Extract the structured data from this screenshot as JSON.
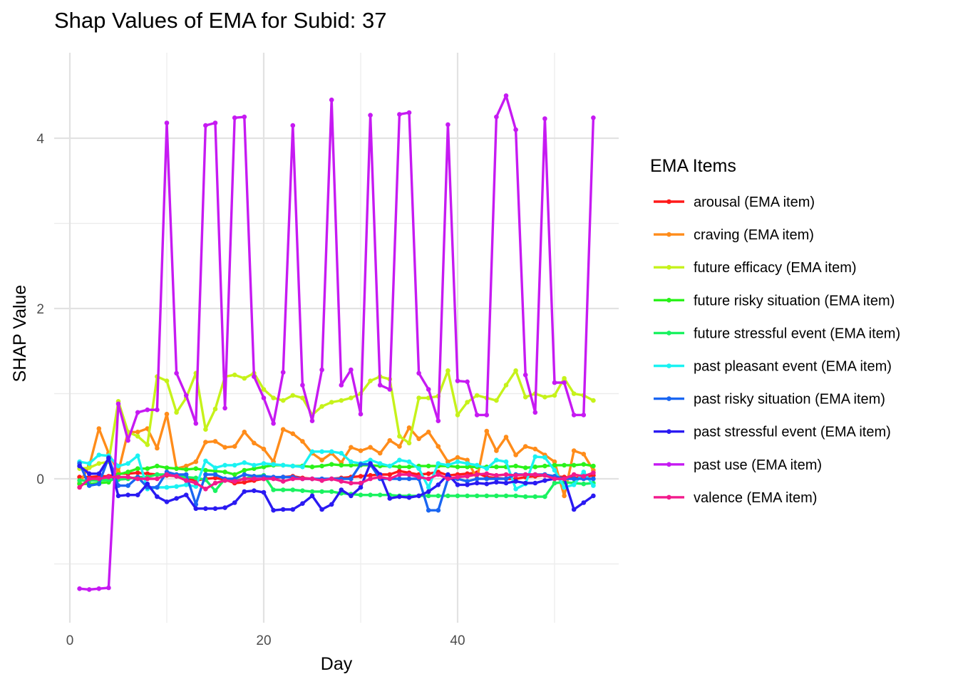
{
  "chart_data": {
    "type": "line",
    "title": "Shap Values of EMA for Subid: 37",
    "xlabel": "Day",
    "ylabel": "SHAP Value",
    "xlim": [
      -0.5,
      57
    ],
    "ylim": [
      -1.7,
      5.0
    ],
    "x_ticks": [
      0,
      20,
      40
    ],
    "y_ticks": [
      0,
      2,
      4
    ],
    "x_minor": [
      10,
      30,
      50
    ],
    "y_minor": [
      -1,
      1,
      3
    ],
    "grid": true,
    "legend_title": "EMA Items",
    "legend_position": "right",
    "x": [
      1,
      2,
      3,
      4,
      5,
      6,
      7,
      8,
      9,
      10,
      11,
      12,
      13,
      14,
      15,
      16,
      17,
      18,
      19,
      20,
      21,
      22,
      23,
      24,
      25,
      26,
      27,
      28,
      29,
      30,
      31,
      32,
      33,
      34,
      35,
      36,
      37,
      38,
      39,
      40,
      41,
      42,
      43,
      44,
      45,
      46,
      47,
      48,
      49,
      50,
      51,
      52,
      53,
      54
    ],
    "series": [
      {
        "name": "arousal (EMA item)",
        "color": "#ff1a1a",
        "values": [
          0.02,
          0.02,
          0.03,
          0.03,
          0.06,
          0.06,
          0.07,
          0.06,
          0.05,
          0.04,
          0.03,
          0.01,
          -0.02,
          0.0,
          0.01,
          -0.01,
          -0.05,
          -0.04,
          -0.02,
          0.0,
          0.01,
          0.02,
          0.03,
          0.01,
          0.0,
          -0.01,
          0.0,
          0.01,
          0.02,
          0.03,
          0.04,
          0.05,
          0.05,
          0.09,
          0.07,
          0.05,
          0.06,
          0.08,
          0.04,
          0.05,
          0.06,
          0.07,
          0.02,
          0.01,
          0.0,
          0.0,
          0.02,
          0.03,
          0.04,
          0.03,
          0.02,
          0.01,
          0.02,
          0.04
        ]
      },
      {
        "name": "craving (EMA item)",
        "color": "#ff8c1a",
        "values": [
          -0.05,
          0.15,
          0.59,
          0.3,
          0.08,
          0.55,
          0.55,
          0.59,
          0.36,
          0.76,
          0.12,
          0.15,
          0.2,
          0.43,
          0.44,
          0.37,
          0.38,
          0.55,
          0.42,
          0.35,
          0.2,
          0.58,
          0.53,
          0.44,
          0.3,
          0.22,
          0.3,
          0.19,
          0.37,
          0.33,
          0.37,
          0.3,
          0.45,
          0.38,
          0.6,
          0.47,
          0.55,
          0.38,
          0.2,
          0.25,
          0.22,
          0.0,
          0.56,
          0.33,
          0.49,
          0.28,
          0.38,
          0.35,
          0.28,
          0.2,
          -0.2,
          0.33,
          0.29,
          0.1
        ]
      },
      {
        "name": "future efficacy (EMA item)",
        "color": "#c6f21a",
        "values": [
          0.12,
          0.13,
          0.18,
          0.2,
          0.91,
          0.55,
          0.5,
          0.4,
          1.2,
          1.15,
          0.78,
          0.95,
          1.24,
          0.58,
          0.82,
          1.2,
          1.22,
          1.18,
          1.24,
          1.05,
          0.95,
          0.92,
          0.98,
          0.95,
          0.75,
          0.85,
          0.9,
          0.92,
          0.95,
          1.0,
          1.15,
          1.2,
          1.17,
          0.5,
          0.42,
          0.95,
          0.95,
          0.97,
          1.27,
          0.75,
          0.9,
          0.98,
          0.95,
          0.92,
          1.1,
          1.27,
          0.96,
          1.0,
          0.96,
          0.98,
          1.18,
          1.0,
          0.98,
          0.92
        ]
      },
      {
        "name": "future risky situation (EMA item)",
        "color": "#2af21a",
        "values": [
          -0.06,
          -0.06,
          -0.05,
          -0.04,
          0.05,
          0.08,
          0.12,
          0.12,
          0.15,
          0.13,
          0.12,
          0.11,
          0.12,
          0.1,
          0.09,
          0.08,
          0.05,
          0.1,
          0.12,
          0.14,
          0.16,
          0.16,
          0.15,
          0.15,
          0.14,
          0.15,
          0.17,
          0.16,
          0.16,
          0.16,
          0.16,
          0.15,
          0.15,
          0.14,
          0.14,
          0.15,
          0.15,
          0.15,
          0.15,
          0.14,
          0.14,
          0.14,
          0.14,
          0.14,
          0.14,
          0.15,
          0.13,
          0.14,
          0.15,
          0.16,
          0.16,
          0.16,
          0.17,
          0.15
        ]
      },
      {
        "name": "future stressful event (EMA item)",
        "color": "#1af260",
        "values": [
          -0.02,
          -0.02,
          -0.02,
          -0.01,
          -0.01,
          0.0,
          0.02,
          0.02,
          0.05,
          0.05,
          0.03,
          0.02,
          0.01,
          -0.01,
          -0.14,
          0.0,
          -0.02,
          0.0,
          0.03,
          0.04,
          -0.13,
          -0.13,
          -0.13,
          -0.14,
          -0.15,
          -0.15,
          -0.15,
          -0.17,
          -0.18,
          -0.19,
          -0.19,
          -0.19,
          -0.19,
          -0.2,
          -0.2,
          -0.2,
          -0.2,
          -0.2,
          -0.2,
          -0.2,
          -0.2,
          -0.2,
          -0.2,
          -0.2,
          -0.2,
          -0.2,
          -0.21,
          -0.21,
          -0.21,
          -0.05,
          -0.04,
          -0.05,
          -0.06,
          -0.05
        ]
      },
      {
        "name": "past pleasant event (EMA item)",
        "color": "#1af2f2",
        "values": [
          0.2,
          0.18,
          0.28,
          0.27,
          0.15,
          0.18,
          0.27,
          -0.12,
          -0.1,
          -0.1,
          -0.09,
          -0.07,
          -0.09,
          0.21,
          0.13,
          0.16,
          0.16,
          0.19,
          0.16,
          0.18,
          0.17,
          0.16,
          0.15,
          0.14,
          0.32,
          0.32,
          0.32,
          0.3,
          0.2,
          0.18,
          0.22,
          0.18,
          0.15,
          0.22,
          0.2,
          0.12,
          -0.1,
          0.18,
          0.16,
          0.2,
          0.18,
          0.16,
          0.12,
          0.22,
          0.2,
          -0.12,
          -0.06,
          0.26,
          0.25,
          0.1,
          -0.1,
          -0.07,
          0.08,
          -0.08
        ]
      },
      {
        "name": "past risky situation (EMA item)",
        "color": "#1a66f2",
        "values": [
          0.18,
          -0.08,
          -0.06,
          0.25,
          -0.08,
          -0.08,
          0.02,
          -0.1,
          -0.1,
          0.08,
          0.05,
          0.05,
          -0.3,
          0.05,
          0.05,
          0.0,
          0.0,
          0.05,
          0.03,
          0.03,
          0.02,
          0.02,
          0.02,
          0.0,
          0.0,
          0.0,
          0.0,
          0.0,
          0.0,
          0.17,
          0.17,
          0.0,
          0.0,
          0.0,
          0.0,
          0.0,
          -0.37,
          -0.37,
          0.0,
          0.0,
          -0.03,
          0.0,
          0.0,
          0.0,
          0.0,
          0.05,
          0.05,
          0.05,
          0.05,
          0.03,
          0.0,
          0.0,
          0.0,
          0.0
        ]
      },
      {
        "name": "past stressful event (EMA item)",
        "color": "#2a1af2",
        "values": [
          0.15,
          0.06,
          0.06,
          0.24,
          -0.2,
          -0.19,
          -0.19,
          -0.06,
          -0.21,
          -0.27,
          -0.23,
          -0.19,
          -0.35,
          -0.35,
          -0.35,
          -0.34,
          -0.28,
          -0.15,
          -0.14,
          -0.16,
          -0.37,
          -0.36,
          -0.36,
          -0.29,
          -0.2,
          -0.36,
          -0.3,
          -0.13,
          -0.2,
          -0.1,
          0.18,
          0.05,
          -0.23,
          -0.21,
          -0.22,
          -0.2,
          -0.15,
          -0.07,
          0.05,
          -0.07,
          -0.07,
          -0.05,
          -0.06,
          -0.04,
          -0.05,
          -0.03,
          -0.05,
          -0.05,
          -0.02,
          0.0,
          0.0,
          -0.36,
          -0.28,
          -0.2
        ]
      },
      {
        "name": "past use (EMA item)",
        "color": "#c61af2",
        "values": [
          -1.29,
          -1.3,
          -1.29,
          -1.28,
          0.88,
          0.45,
          0.78,
          0.81,
          0.81,
          4.18,
          1.24,
          0.98,
          0.65,
          4.15,
          4.18,
          0.83,
          4.24,
          4.25,
          1.2,
          0.95,
          0.65,
          1.25,
          4.15,
          1.1,
          0.68,
          1.28,
          4.45,
          1.1,
          1.28,
          0.76,
          4.27,
          1.1,
          1.05,
          4.28,
          4.3,
          1.24,
          1.05,
          0.68,
          4.16,
          1.15,
          1.14,
          0.75,
          0.75,
          4.25,
          4.5,
          4.1,
          1.22,
          0.78,
          4.23,
          1.13,
          1.13,
          0.75,
          0.75,
          4.24
        ]
      },
      {
        "name": "valence (EMA item)",
        "color": "#f21a8c",
        "values": [
          -0.1,
          0.0,
          0.0,
          0.02,
          0.02,
          0.02,
          0.0,
          0.0,
          0.0,
          0.05,
          0.03,
          -0.02,
          -0.05,
          -0.12,
          -0.05,
          -0.02,
          -0.03,
          0.0,
          0.0,
          0.0,
          0.0,
          -0.03,
          0.0,
          0.0,
          0.0,
          -0.02,
          0.0,
          -0.03,
          -0.05,
          -0.05,
          0.0,
          0.02,
          0.0,
          0.05,
          0.05,
          0.02,
          0.0,
          0.05,
          0.0,
          0.02,
          0.03,
          0.05,
          0.06,
          0.04,
          0.05,
          0.04,
          0.05,
          0.05,
          0.04,
          0.0,
          0.0,
          0.05,
          0.03,
          0.07
        ]
      }
    ]
  }
}
